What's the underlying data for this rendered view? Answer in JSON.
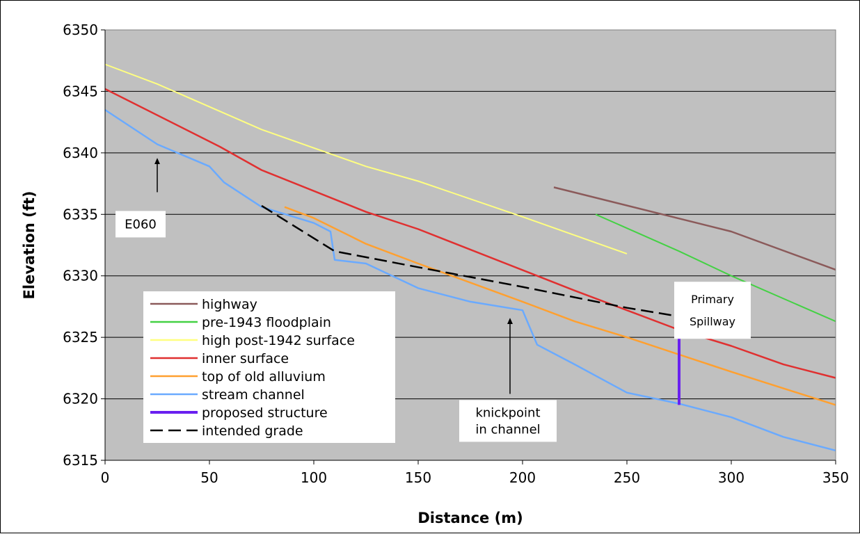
{
  "chart_data": {
    "type": "line",
    "xlabel": "Distance (m)",
    "ylabel": "Elevation (ft)",
    "xlim": [
      0,
      350
    ],
    "ylim": [
      6315,
      6350
    ],
    "xticks": [
      "0",
      "50",
      "100",
      "150",
      "200",
      "250",
      "300",
      "350"
    ],
    "yticks": [
      "6315",
      "6320",
      "6325",
      "6330",
      "6335",
      "6340",
      "6345",
      "6350"
    ],
    "grid": "horizontal",
    "plot_background": "#c0c0c0",
    "legend_position": "lower-left inside plot",
    "series": [
      {
        "name": "highway",
        "color": "#8b5a5a",
        "dash": false,
        "width": 2.5,
        "points": [
          [
            215,
            6337.2
          ],
          [
            300,
            6333.6
          ],
          [
            350,
            6330.5
          ]
        ]
      },
      {
        "name": "pre-1943 floodplain",
        "color": "#44d144",
        "dash": false,
        "width": 2,
        "points": [
          [
            235,
            6335
          ],
          [
            275,
            6332
          ],
          [
            300,
            6330
          ],
          [
            350,
            6326.3
          ]
        ]
      },
      {
        "name": "high post-1942 surface",
        "color": "#ffff80",
        "dash": false,
        "width": 2,
        "points": [
          [
            0,
            6347.2
          ],
          [
            25,
            6345.6
          ],
          [
            75,
            6341.9
          ],
          [
            125,
            6338.9
          ],
          [
            150,
            6337.7
          ],
          [
            200,
            6334.8
          ],
          [
            250,
            6331.8
          ]
        ]
      },
      {
        "name": "inner surface",
        "color": "#e03030",
        "dash": false,
        "width": 2.5,
        "points": [
          [
            0,
            6345.2
          ],
          [
            55,
            6340.5
          ],
          [
            75,
            6338.6
          ],
          [
            125,
            6335.2
          ],
          [
            150,
            6333.8
          ],
          [
            225,
            6328.8
          ],
          [
            250,
            6327.2
          ],
          [
            275,
            6325.6
          ],
          [
            300,
            6324.3
          ],
          [
            325,
            6322.8
          ],
          [
            350,
            6321.7
          ]
        ]
      },
      {
        "name": "top of old alluvium",
        "color": "#ffa030",
        "dash": false,
        "width": 2.5,
        "points": [
          [
            86,
            6335.6
          ],
          [
            100,
            6334.7
          ],
          [
            125,
            6332.6
          ],
          [
            150,
            6331
          ],
          [
            200,
            6327.9
          ],
          [
            225,
            6326.3
          ],
          [
            250,
            6325
          ],
          [
            275,
            6323.6
          ],
          [
            300,
            6322.2
          ],
          [
            350,
            6319.5
          ]
        ]
      },
      {
        "name": "stream channel",
        "color": "#6aaaff",
        "dash": false,
        "width": 2.5,
        "points": [
          [
            0,
            6343.5
          ],
          [
            25,
            6340.7
          ],
          [
            50,
            6338.9
          ],
          [
            57,
            6337.6
          ],
          [
            75,
            6335.6
          ],
          [
            100,
            6334.3
          ],
          [
            108,
            6333.6
          ],
          [
            110,
            6331.3
          ],
          [
            125,
            6331
          ],
          [
            150,
            6329
          ],
          [
            175,
            6327.9
          ],
          [
            200,
            6327.2
          ],
          [
            207,
            6324.4
          ],
          [
            225,
            6322.8
          ],
          [
            250,
            6320.5
          ],
          [
            275,
            6319.6
          ],
          [
            300,
            6318.5
          ],
          [
            325,
            6316.9
          ],
          [
            350,
            6315.8
          ]
        ]
      },
      {
        "name": "proposed structure",
        "color": "#6a20f0",
        "dash": false,
        "width": 4,
        "points": [
          [
            275,
            6326.6
          ],
          [
            275,
            6319.5
          ]
        ]
      },
      {
        "name": "intended grade",
        "color": "#000000",
        "dash": true,
        "width": 2.5,
        "points": [
          [
            75,
            6335.7
          ],
          [
            110,
            6332
          ],
          [
            150,
            6330.7
          ],
          [
            200,
            6329.1
          ],
          [
            250,
            6327.4
          ],
          [
            275,
            6326.7
          ]
        ]
      }
    ],
    "annotations": [
      {
        "id": "e060",
        "text": "E060",
        "lines": [
          "E060"
        ],
        "arrow_from": [
          25,
          6336.8
        ],
        "arrow_to": [
          25,
          6339.7
        ],
        "box_center": [
          17,
          6334.2
        ]
      },
      {
        "id": "knickpoint",
        "text": "knickpoint in channel",
        "lines": [
          "knickpoint",
          "in channel"
        ],
        "arrow_from": [
          194,
          6320.4
        ],
        "arrow_to": [
          194,
          6326.7
        ],
        "box_center": [
          193,
          6318.2
        ]
      },
      {
        "id": "spillway",
        "text": "Primary Spillway",
        "lines": [
          "Primary",
          "Spillway"
        ],
        "box_center": [
          291,
          6327.2
        ]
      }
    ]
  }
}
